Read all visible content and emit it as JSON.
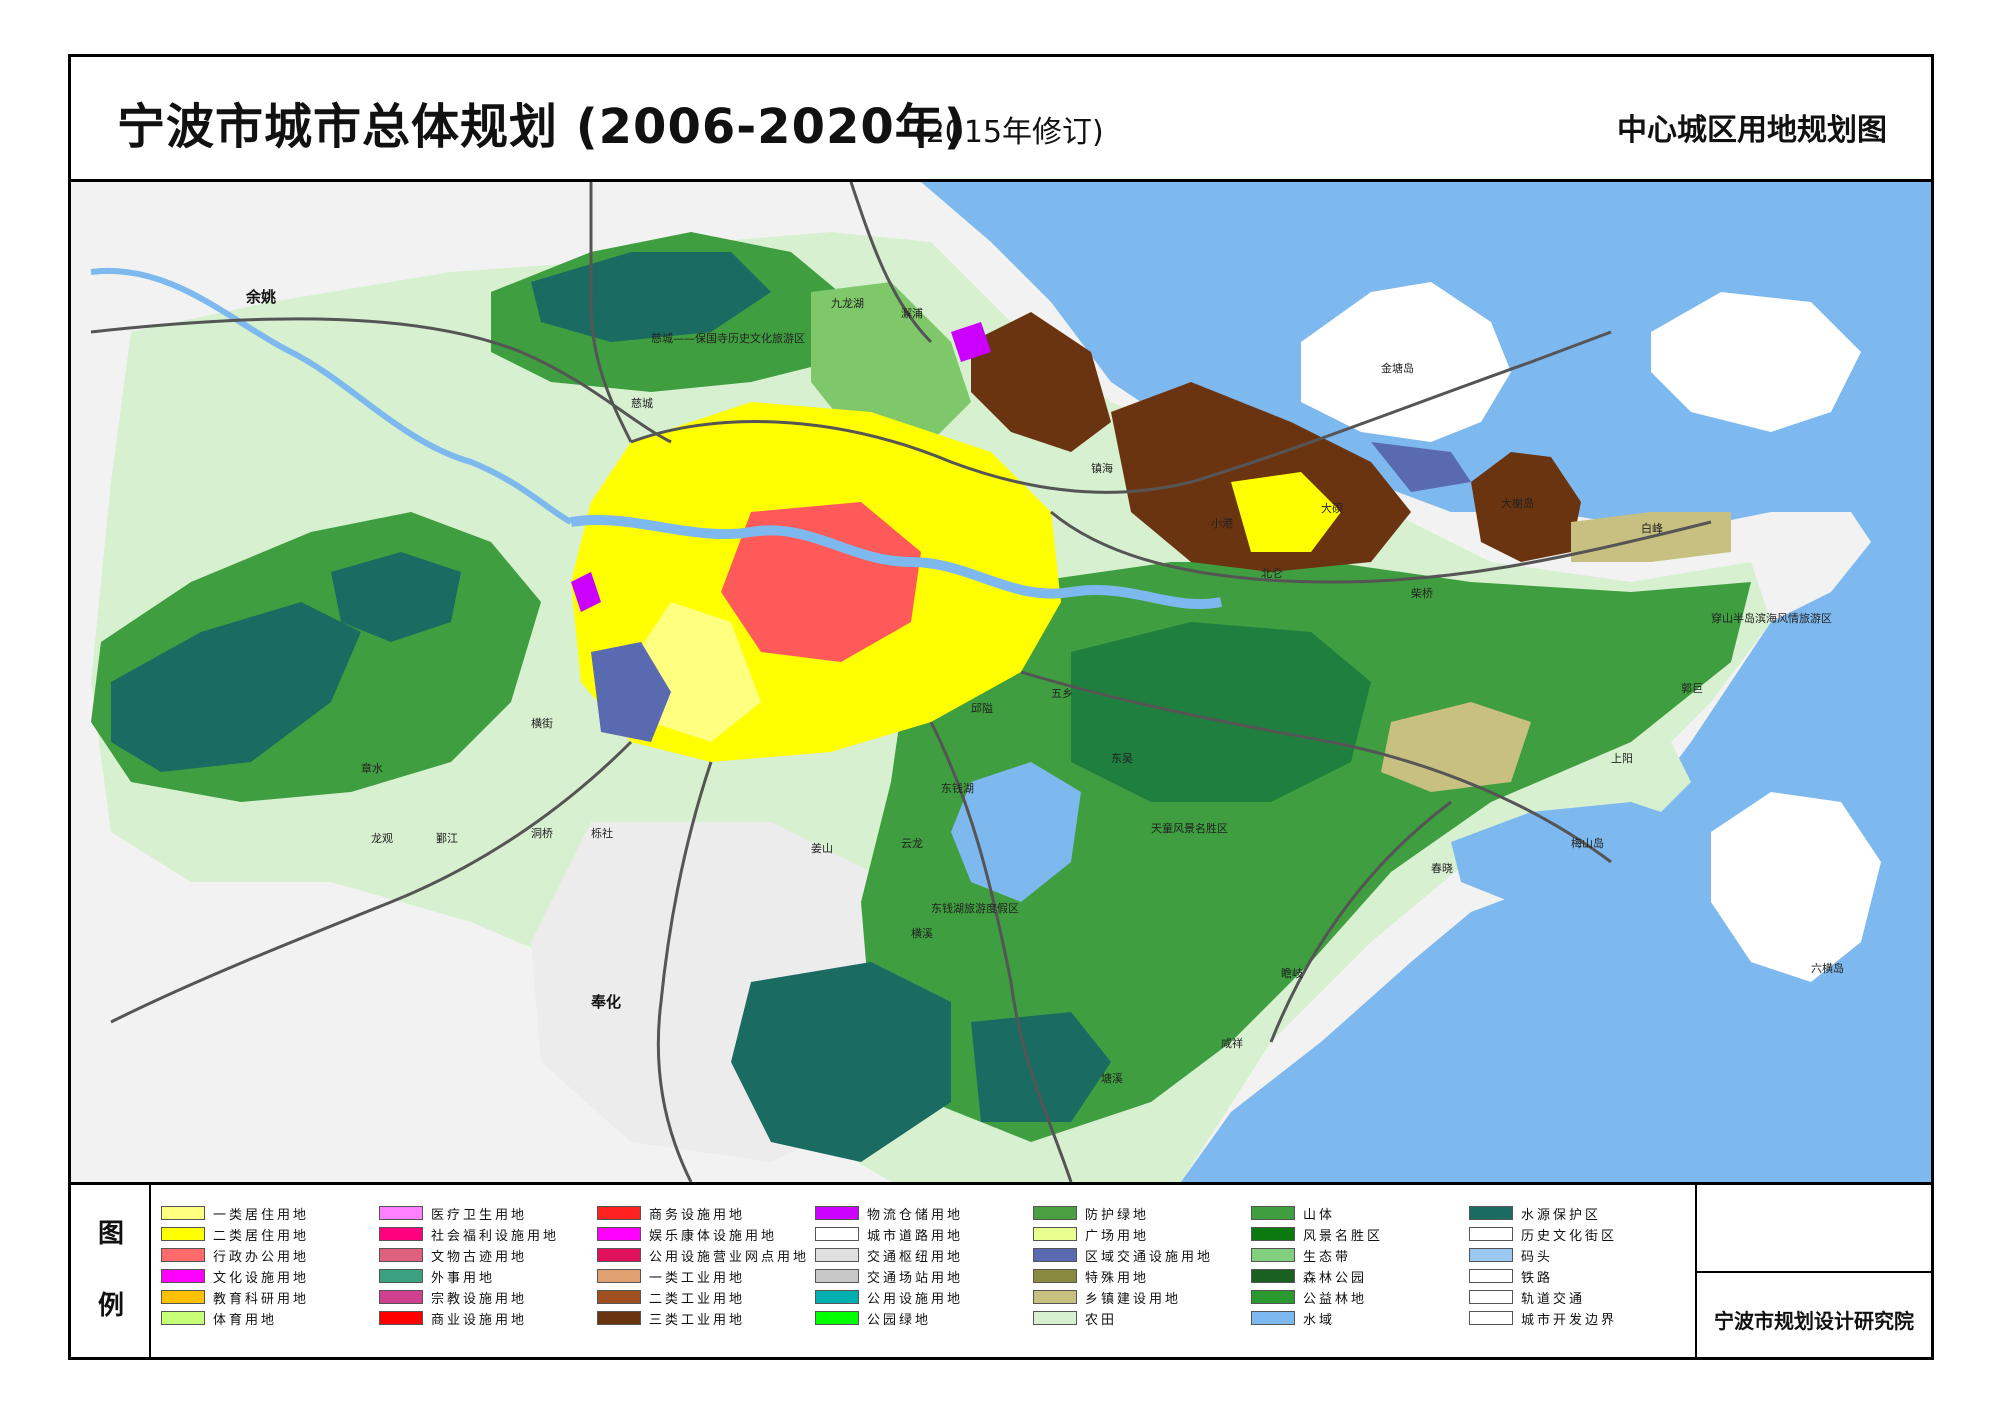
{
  "title": {
    "main": "宁波市城市总体规划 (2006-2020年)",
    "sub": "(2015年修订)",
    "map_name": "中心城区用地规划图"
  },
  "map": {
    "colors": {
      "water": "#7db9ee",
      "farmland": "#d6f0d0",
      "forest": "#3f9e3f",
      "dark_forest": "#1f7f3f",
      "water_protect": "#1a6b62",
      "residential": "#ffff00",
      "industrial": "#6b3410",
      "logistics": "#cc00ff",
      "commercial": "#ff0000",
      "road": "#555555"
    },
    "labels": {
      "yuyao": "余姚",
      "jiulonghu": "九龙湖",
      "xiepu": "澥浦",
      "cicheng": "慈城",
      "cicheng_area": "慈城——保国寺历史文化旅游区",
      "jintang": "金塘岛",
      "daxie": "大榭岛",
      "baifeng": "白峰",
      "chaiqiao": "柴桥",
      "dagang": "大碶",
      "xiaogang": "小港",
      "beilun": "北仑",
      "jiaochuan": "镇海",
      "wuxiang": "五乡",
      "yinzhou": "邱隘",
      "dongqian": "东钱湖",
      "dongwu": "东吴",
      "dongqianhu_area": "东钱湖旅游度假区",
      "tianhe": "天童风景名胜区",
      "yunlong": "云龙",
      "hengxi": "横溪",
      "jiangshan": "姜山",
      "fenghua": "奉化",
      "zhanqi": "鄞江",
      "longguan": "龙观",
      "dongqiao": "洞桥",
      "xiaobu": "栎社",
      "hengjie": "横街",
      "zhangshui": "章水",
      "meishan": "梅山岛",
      "chunxiao": "春晓",
      "xiapu": "咸祥",
      "ruiyan": "瞻岐",
      "guotiao": "郭巨",
      "shangyang": "上阳",
      "liuheng": "六横岛",
      "bacheng": "塘溪",
      "chuanshan": "穿山半岛滨海风情旅游区"
    }
  },
  "legend": {
    "heading_1": "图",
    "heading_2": "例",
    "organization": "宁波市规划设计研究院",
    "items": [
      {
        "label": "一类居住用地",
        "color": "#ffff80"
      },
      {
        "label": "二类居住用地",
        "color": "#ffff00"
      },
      {
        "label": "行政办公用地",
        "color": "#ff6a6a"
      },
      {
        "label": "文化设施用地",
        "color": "#ff00ff"
      },
      {
        "label": "教育科研用地",
        "color": "#ffc000"
      },
      {
        "label": "体育用地",
        "color": "#c8ff78"
      },
      {
        "label": "医疗卫生用地",
        "color": "#ff80ff"
      },
      {
        "label": "社会福利设施用地",
        "color": "#ff007f"
      },
      {
        "label": "文物古迹用地",
        "color": "#e06080"
      },
      {
        "label": "外事用地",
        "color": "#3aa080"
      },
      {
        "label": "宗教设施用地",
        "color": "#d04090"
      },
      {
        "label": "商业设施用地",
        "color": "#ff0000"
      },
      {
        "label": "商务设施用地",
        "color": "#ff2020"
      },
      {
        "label": "娱乐康体设施用地",
        "color": "#ff00ff"
      },
      {
        "label": "公用设施营业网点用地",
        "color": "#e0105a"
      },
      {
        "label": "一类工业用地",
        "color": "#e0a070"
      },
      {
        "label": "二类工业用地",
        "color": "#a05020"
      },
      {
        "label": "三类工业用地",
        "color": "#6b3410"
      },
      {
        "label": "物流仓储用地",
        "color": "#cc00ff"
      },
      {
        "label": "城市道路用地",
        "color": "#ffffff"
      },
      {
        "label": "交通枢纽用地",
        "color": "#e0e0e0"
      },
      {
        "label": "交通场站用地",
        "color": "#c8c8c8"
      },
      {
        "label": "公用设施用地",
        "color": "#00b0b0"
      },
      {
        "label": "公园绿地",
        "color": "#00ff00"
      },
      {
        "label": "防护绿地",
        "color": "#4aa040"
      },
      {
        "label": "广场用地",
        "color": "#e8ff90"
      },
      {
        "label": "区域交通设施用地",
        "color": "#5a6ab0"
      },
      {
        "label": "特殊用地",
        "color": "#8a8a40"
      },
      {
        "label": "乡镇建设用地",
        "color": "#c8c080"
      },
      {
        "label": "农田",
        "color": "#d6f0d0"
      },
      {
        "label": "山体",
        "color": "#3f9e3f"
      },
      {
        "label": "风景名胜区",
        "color": "#0a7a10"
      },
      {
        "label": "生态带",
        "color": "#80d080"
      },
      {
        "label": "森林公园",
        "color": "#1a6020"
      },
      {
        "label": "公益林地",
        "color": "#2a9a30"
      },
      {
        "label": "水域",
        "color": "#7db9ee"
      },
      {
        "label": "水源保护区",
        "color": "#1a6b62"
      },
      {
        "label": "历史文化街区",
        "color": "#ffffff"
      },
      {
        "label": "码头",
        "color": "#9ac8f0"
      },
      {
        "label": "铁路",
        "color": "#ffffff"
      },
      {
        "label": "轨道交通",
        "color": "#ffffff"
      },
      {
        "label": "城市开发边界",
        "color": "#ffffff"
      }
    ]
  }
}
